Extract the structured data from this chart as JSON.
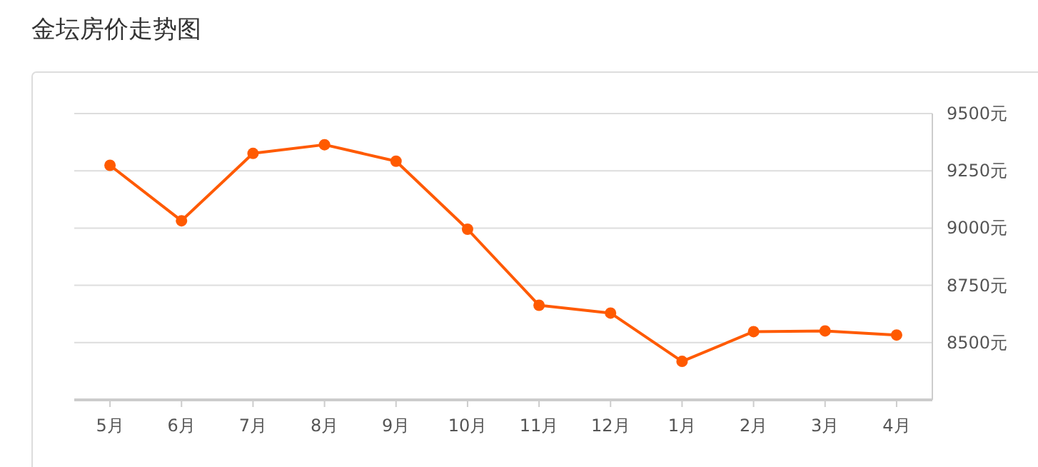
{
  "chart_data": {
    "type": "line",
    "title": "金坛房价走势图",
    "categories": [
      "5月",
      "6月",
      "7月",
      "8月",
      "9月",
      "10月",
      "11月",
      "12月",
      "1月",
      "2月",
      "3月",
      "4月"
    ],
    "series": [
      {
        "color": "#ff5a00",
        "values": [
          9274,
          9032,
          9326,
          9364,
          9292,
          8995,
          8663,
          8629,
          8418,
          8548,
          8551,
          8533
        ]
      }
    ],
    "ylim": [
      8250,
      9500
    ],
    "yticks": [
      {
        "value": 8500,
        "label": "8500元"
      },
      {
        "value": 8750,
        "label": "8750元"
      },
      {
        "value": 9000,
        "label": "9000元"
      },
      {
        "value": 9250,
        "label": "9250元"
      },
      {
        "value": 9500,
        "label": "9500元"
      }
    ],
    "grid": "y",
    "marker": "circle",
    "line_style": "solid"
  }
}
